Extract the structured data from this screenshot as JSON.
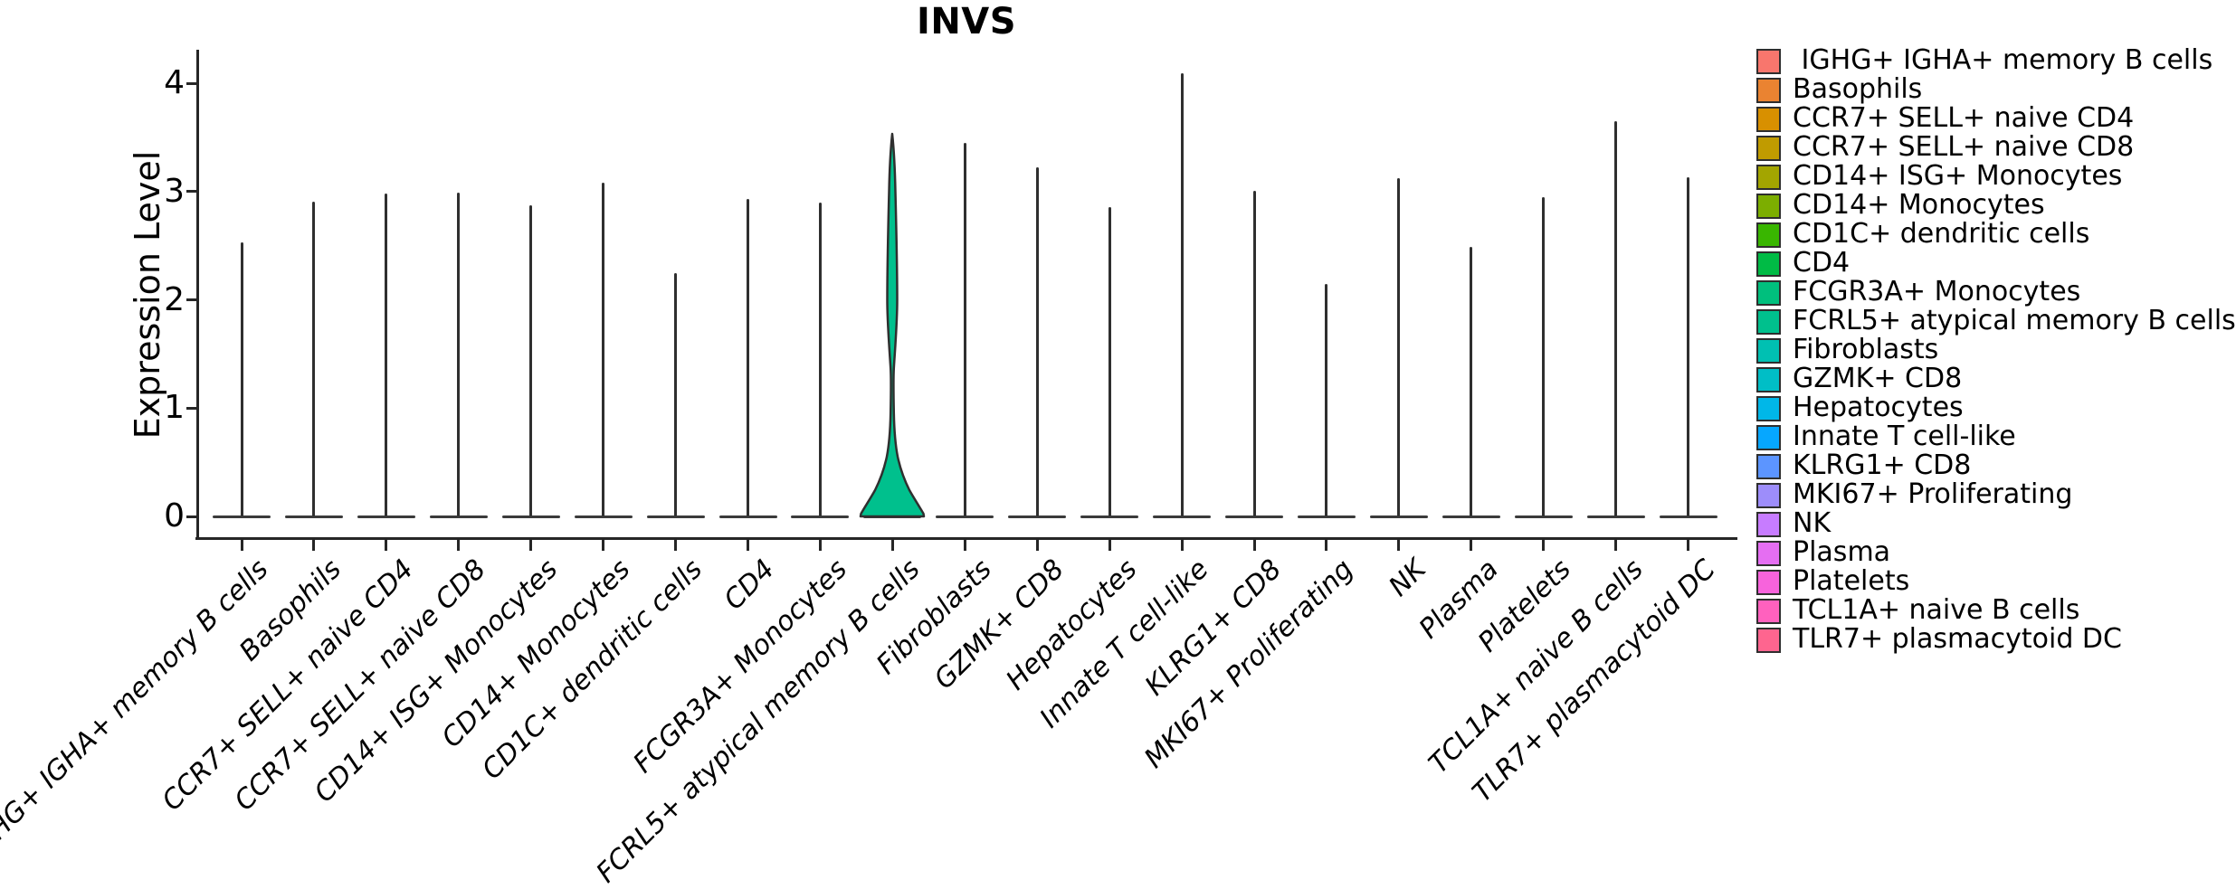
{
  "title": "INVS",
  "axes": {
    "y_label": "Expression Level",
    "y_ticks": [
      4,
      3,
      2,
      1,
      0
    ],
    "x_label": ""
  },
  "legend": {
    "position": "right"
  },
  "chart_data": {
    "type": "violin",
    "title": "INVS",
    "xlabel": "",
    "ylabel": "Expression Level",
    "ylim": [
      0,
      4.31
    ],
    "yticks": [
      0,
      1,
      2,
      3,
      4
    ],
    "grid": false,
    "legend_position": "right",
    "baseline_value": 0,
    "description": "Violin plot of INVS expression per cell type; every category collapses to a flat line at 0 with a thin spike to its maximum, except FCRL5+ atypical memory B cells which shows a filled violin with bulk near 0 and a tail to ~3.53",
    "categories": [
      {
        "label": "IGHG+ IGHA+ memory B cells",
        "legend_label": " IGHG+ IGHA+ memory B cells",
        "color": "#F8766D",
        "max": 2.53,
        "shape": "spike"
      },
      {
        "label": "Basophils",
        "legend_label": "Basophils",
        "color": "#EA8331",
        "max": 2.91,
        "shape": "spike"
      },
      {
        "label": "CCR7+ SELL+ naive CD4",
        "legend_label": "CCR7+ SELL+ naive CD4",
        "color": "#D89000",
        "max": 2.98,
        "shape": "spike"
      },
      {
        "label": "CCR7+ SELL+ naive CD8",
        "legend_label": "CCR7+ SELL+ naive CD8",
        "color": "#C09B00",
        "max": 2.99,
        "shape": "spike"
      },
      {
        "label": "CD14+ ISG+ Monocytes",
        "legend_label": "CD14+ ISG+ Monocytes",
        "color": "#A3A500",
        "max": 2.87,
        "shape": "spike"
      },
      {
        "label": "CD14+ Monocytes",
        "legend_label": "CD14+ Monocytes",
        "color": "#7CAE00",
        "max": 3.08,
        "shape": "spike"
      },
      {
        "label": "CD1C+ dendritic cells",
        "legend_label": "CD1C+ dendritic cells",
        "color": "#39B600",
        "max": 2.25,
        "shape": "spike"
      },
      {
        "label": "CD4",
        "legend_label": "CD4",
        "color": "#00BB45",
        "max": 2.93,
        "shape": "spike"
      },
      {
        "label": "FCGR3A+ Monocytes",
        "legend_label": "FCGR3A+ Monocytes",
        "color": "#00BF7D",
        "max": 2.9,
        "shape": "spike"
      },
      {
        "label": "FCRL5+ atypical memory B cells",
        "legend_label": "FCRL5+ atypical memory B cells",
        "color": "#00C08D",
        "max": 3.53,
        "shape": "violin"
      },
      {
        "label": "Fibroblasts",
        "legend_label": "Fibroblasts",
        "color": "#00C0B2",
        "max": 3.45,
        "shape": "spike"
      },
      {
        "label": "GZMK+ CD8",
        "legend_label": "GZMK+ CD8",
        "color": "#00BEC6",
        "max": 3.22,
        "shape": "spike"
      },
      {
        "label": "Hepatocytes",
        "legend_label": "Hepatocytes",
        "color": "#00B7E8",
        "max": 2.86,
        "shape": "spike"
      },
      {
        "label": "Innate T cell-like",
        "legend_label": "Innate T cell-like",
        "color": "#06A7FF",
        "max": 4.09,
        "shape": "spike"
      },
      {
        "label": "KLRG1+ CD8",
        "legend_label": "KLRG1+ CD8",
        "color": "#5C95FF",
        "max": 3.01,
        "shape": "spike"
      },
      {
        "label": "MKI67+ Proliferating",
        "legend_label": "MKI67+ Proliferating",
        "color": "#9D8DFA",
        "max": 2.15,
        "shape": "spike"
      },
      {
        "label": "NK",
        "legend_label": "NK",
        "color": "#C77CFF",
        "max": 3.12,
        "shape": "spike"
      },
      {
        "label": "Plasma",
        "legend_label": "Plasma",
        "color": "#E56EF2",
        "max": 2.49,
        "shape": "spike"
      },
      {
        "label": "Platelets",
        "legend_label": "Platelets",
        "color": "#F763DC",
        "max": 2.95,
        "shape": "spike"
      },
      {
        "label": "TCL1A+ naive B cells",
        "legend_label": "TCL1A+ naive B cells",
        "color": "#FF61BE",
        "max": 3.65,
        "shape": "spike"
      },
      {
        "label": "TLR7+ plasmacytoid DC",
        "legend_label": "TLR7+ plasmacytoid DC",
        "color": "#FE658F",
        "max": 3.13,
        "shape": "spike"
      }
    ]
  }
}
